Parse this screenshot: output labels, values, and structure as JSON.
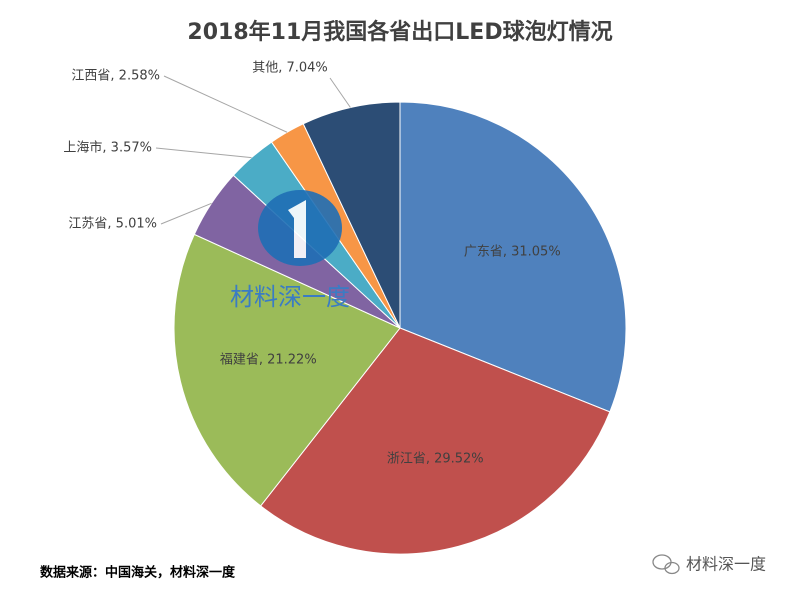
{
  "chart_data": {
    "type": "pie",
    "title": "2018年11月我国各省出口LED球泡灯情况",
    "values": [
      31.05,
      29.52,
      21.22,
      5.01,
      3.57,
      2.58,
      7.04
    ],
    "value_labels": [
      "广东省, 31.05%",
      "浙江省, 29.52%",
      "福建省, 21.22%",
      "江苏省, 5.01%",
      "上海市, 3.57%",
      "江西省, 2.58%",
      "其他, 7.04%"
    ],
    "colors": [
      "#4f81bd",
      "#c0504d",
      "#9bbb59",
      "#8064a2",
      "#4bacc6",
      "#f79646",
      "#2c4d75"
    ]
  },
  "watermark": "材料深一度",
  "source": "数据来源：中国海关，材料深一度",
  "brand": "材料深一度"
}
